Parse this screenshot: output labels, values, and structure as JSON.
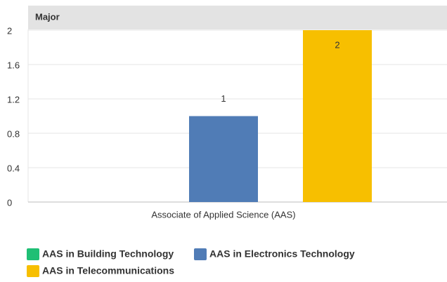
{
  "chart_data": {
    "type": "bar",
    "title": "Major",
    "categories": [
      "Associate of Applied Science (AAS)"
    ],
    "series": [
      {
        "name": "AAS in Building Technology",
        "color": "#1fbf75",
        "values": [
          0
        ]
      },
      {
        "name": "AAS in Electronics Technology",
        "color": "#507cb6",
        "values": [
          1
        ]
      },
      {
        "name": "AAS in Telecommunications",
        "color": "#f7bf00",
        "values": [
          2
        ]
      }
    ],
    "ylim": [
      0,
      2
    ],
    "yticks": [
      0,
      0.4,
      0.8,
      1.2,
      1.6,
      2
    ],
    "grid": true
  }
}
